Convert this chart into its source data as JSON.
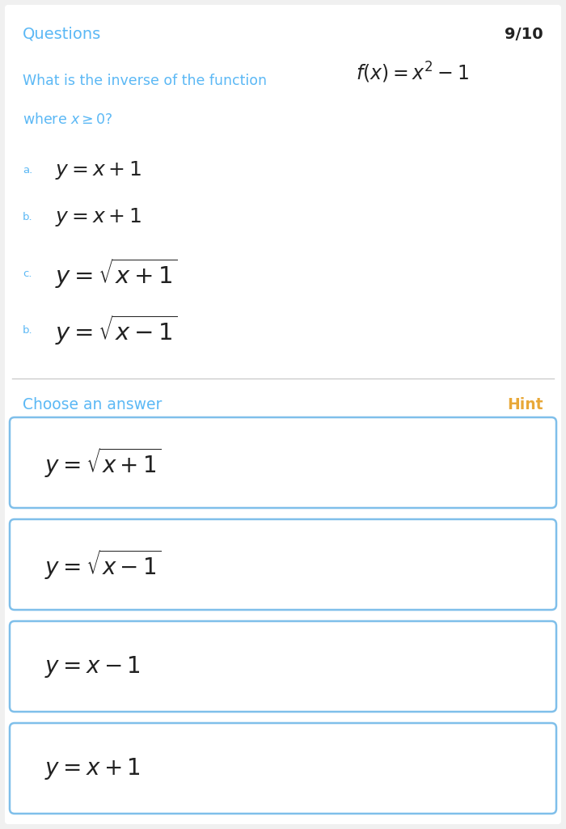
{
  "bg_color": "#f0f0f0",
  "white": "#ffffff",
  "blue_label": "#5bb8f5",
  "hint_color": "#e8a838",
  "border_color": "#7fbfea",
  "text_color": "#222222",
  "title": "Questions",
  "page_num": "9/10",
  "question_text": "What is the inverse of the function",
  "question_formula": "$f(x) = x^2 - 1$",
  "where_text": "where $x \\geq 0$?",
  "choices": [
    {
      "label": "a.",
      "formula": "$y = x + 1$"
    },
    {
      "label": "b.",
      "formula": "$y = x + 1$"
    },
    {
      "label": "c.",
      "formula": "$y = \\sqrt{x+1}$"
    },
    {
      "label": "b.",
      "formula": "$y = \\sqrt{x-1}$"
    }
  ],
  "choose_text": "Choose an answer",
  "hint_text": "Hint",
  "answer_boxes": [
    "$y = \\sqrt{x+1}$",
    "$y = \\sqrt{x-1}$",
    "$y = x - 1$",
    "$y = x + 1$"
  ]
}
